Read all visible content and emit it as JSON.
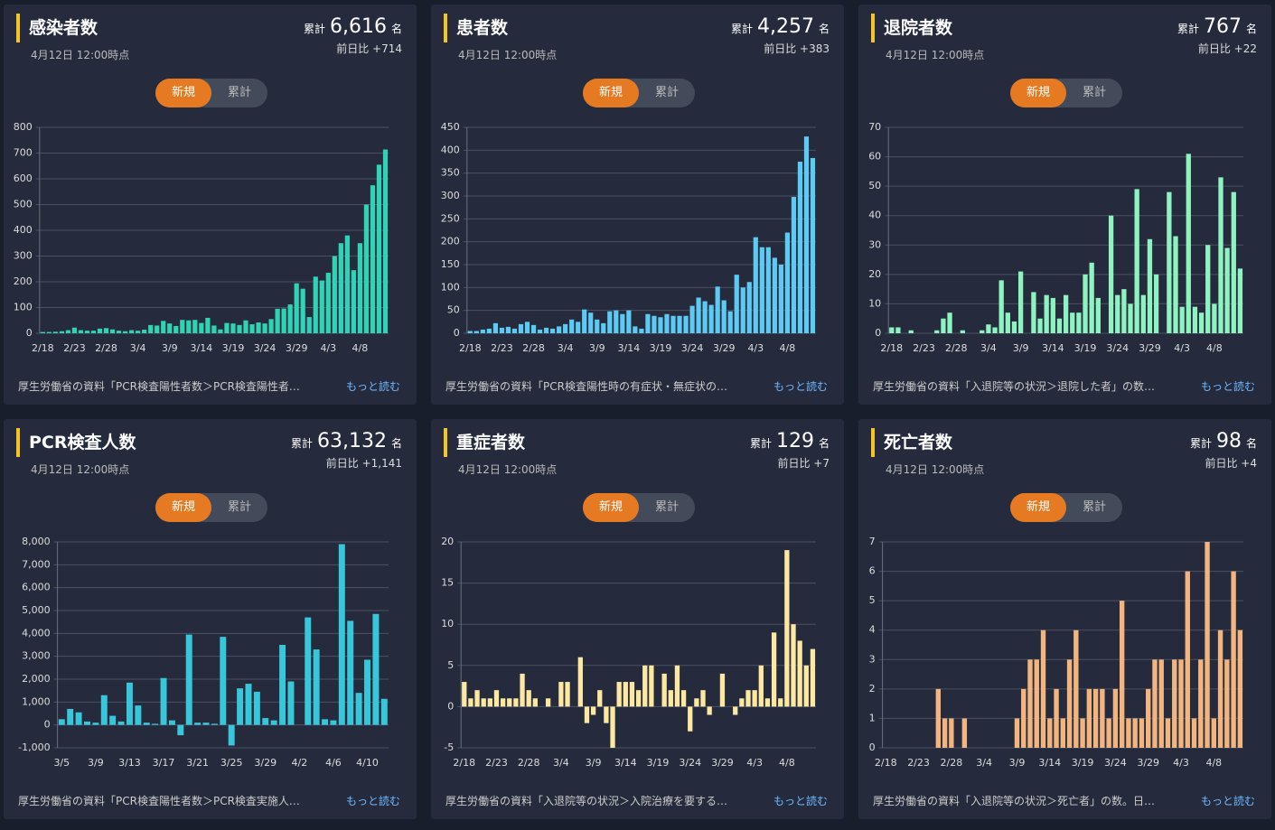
{
  "chart_data": [
    {
      "type": "bar",
      "title": "感染者数",
      "subtitle": "4月12日 12:00時点",
      "total_prefix": "累計",
      "total": "6,616",
      "unit": "名",
      "change": "前日比 +714",
      "toggle": [
        "新規",
        "累計"
      ],
      "source": "厚生労働省の資料「PCR検査陽性者数＞PCR検査陽性者…",
      "more": "もっと読む",
      "color": "#2fd3b6",
      "categories": [
        "2/18",
        null,
        null,
        null,
        null,
        "2/23",
        null,
        null,
        null,
        null,
        "2/28",
        null,
        null,
        null,
        null,
        "3/4",
        null,
        null,
        null,
        null,
        "3/9",
        null,
        null,
        null,
        null,
        "3/14",
        null,
        null,
        null,
        null,
        "3/19",
        null,
        null,
        null,
        null,
        "3/24",
        null,
        null,
        null,
        null,
        "3/29",
        null,
        null,
        null,
        null,
        "4/3",
        null,
        null,
        null,
        null,
        "4/8",
        null,
        null,
        null,
        null
      ],
      "values": [
        5,
        5,
        6,
        8,
        12,
        22,
        12,
        10,
        10,
        18,
        20,
        15,
        10,
        8,
        12,
        10,
        14,
        32,
        30,
        48,
        38,
        28,
        52,
        50,
        52,
        40,
        60,
        30,
        15,
        40,
        38,
        32,
        50,
        35,
        42,
        38,
        55,
        95,
        96,
        112,
        194,
        173,
        63,
        220,
        205,
        235,
        300,
        350,
        380,
        245,
        350,
        500,
        575,
        655,
        714
      ],
      "ylim": [
        0,
        800
      ],
      "yticks": [
        0,
        100,
        200,
        300,
        400,
        500,
        600,
        700,
        800
      ]
    },
    {
      "type": "bar",
      "title": "患者数",
      "subtitle": "4月12日 12:00時点",
      "total_prefix": "累計",
      "total": "4,257",
      "unit": "名",
      "change": "前日比 +383",
      "toggle": [
        "新規",
        "累計"
      ],
      "source": "厚生労働省の資料「PCR検査陽性時の有症状・無症状の…",
      "more": "もっと読む",
      "color": "#5ccaf2",
      "categories": [
        "2/18",
        null,
        null,
        null,
        null,
        "2/23",
        null,
        null,
        null,
        null,
        "2/28",
        null,
        null,
        null,
        null,
        "3/4",
        null,
        null,
        null,
        null,
        "3/9",
        null,
        null,
        null,
        null,
        "3/14",
        null,
        null,
        null,
        null,
        "3/19",
        null,
        null,
        null,
        null,
        "3/24",
        null,
        null,
        null,
        null,
        "3/29",
        null,
        null,
        null,
        null,
        "4/3",
        null,
        null,
        null,
        null,
        "4/8",
        null,
        null,
        null,
        null
      ],
      "values": [
        5,
        5,
        8,
        10,
        22,
        12,
        14,
        10,
        20,
        25,
        18,
        8,
        12,
        10,
        15,
        20,
        30,
        25,
        52,
        45,
        30,
        22,
        48,
        50,
        42,
        50,
        15,
        10,
        42,
        38,
        35,
        42,
        38,
        38,
        38,
        60,
        78,
        70,
        62,
        102,
        72,
        48,
        128,
        100,
        112,
        210,
        188,
        188,
        165,
        150,
        220,
        298,
        375,
        430,
        383
      ],
      "ylim": [
        0,
        450
      ],
      "yticks": [
        0,
        50,
        100,
        150,
        200,
        250,
        300,
        350,
        400,
        450
      ]
    },
    {
      "type": "bar",
      "title": "退院者数",
      "subtitle": "4月12日 12:00時点",
      "total_prefix": "累計",
      "total": "767",
      "unit": "名",
      "change": "前日比 +22",
      "toggle": [
        "新規",
        "累計"
      ],
      "source": "厚生労働省の資料「入退院等の状況＞退院した者」の数…",
      "more": "もっと読む",
      "color": "#8ff3c1",
      "categories": [
        "2/18",
        null,
        null,
        null,
        null,
        "2/23",
        null,
        null,
        null,
        null,
        "2/28",
        null,
        null,
        null,
        null,
        "3/4",
        null,
        null,
        null,
        null,
        "3/9",
        null,
        null,
        null,
        null,
        "3/14",
        null,
        null,
        null,
        null,
        "3/19",
        null,
        null,
        null,
        null,
        "3/24",
        null,
        null,
        null,
        null,
        "3/29",
        null,
        null,
        null,
        null,
        "4/3",
        null,
        null,
        null,
        null,
        "4/8",
        null,
        null,
        null,
        null
      ],
      "values": [
        2,
        2,
        0,
        1,
        0,
        0,
        0,
        1,
        5,
        7,
        0,
        1,
        0,
        0,
        1,
        3,
        2,
        18,
        7,
        4,
        21,
        0,
        14,
        5,
        13,
        12,
        5,
        13,
        7,
        7,
        20,
        24,
        12,
        0,
        40,
        13,
        15,
        10,
        49,
        13,
        32,
        20,
        0,
        48,
        33,
        9,
        61,
        9,
        7,
        30,
        10,
        53,
        29,
        48,
        22
      ],
      "ylim": [
        0,
        70
      ],
      "yticks": [
        0,
        10,
        20,
        30,
        40,
        50,
        60,
        70
      ]
    },
    {
      "type": "bar",
      "title": "PCR検査人数",
      "subtitle": "4月12日 12:00時点",
      "total_prefix": "累計",
      "total": "63,132",
      "unit": "名",
      "change": "前日比 +1,141",
      "toggle": [
        "新規",
        "累計"
      ],
      "source": "厚生労働省の資料「PCR検査陽性者数＞PCR検査実施人…",
      "more": "もっと読む",
      "color": "#38c7da",
      "categories": [
        "3/5",
        null,
        null,
        null,
        "3/9",
        null,
        null,
        null,
        "3/13",
        null,
        null,
        null,
        "3/17",
        null,
        null,
        null,
        "3/21",
        null,
        null,
        null,
        "3/25",
        null,
        null,
        null,
        "3/29",
        null,
        null,
        null,
        "4/2",
        null,
        null,
        null,
        "4/6",
        null,
        null,
        null,
        "4/10",
        null,
        null
      ],
      "values": [
        250,
        700,
        550,
        150,
        100,
        1300,
        400,
        150,
        1850,
        850,
        100,
        50,
        2050,
        200,
        -450,
        3950,
        100,
        100,
        50,
        3850,
        -900,
        1600,
        1800,
        1450,
        300,
        200,
        3500,
        1900,
        0,
        4700,
        3300,
        250,
        200,
        7900,
        4550,
        1400,
        2850,
        4850,
        1141
      ],
      "ylim": [
        -1000,
        8000
      ],
      "yticks": [
        {
          "value": -1000,
          "label": "-1,000"
        },
        0,
        {
          "value": 1000,
          "label": "1,000"
        },
        {
          "value": 2000,
          "label": "2,000"
        },
        {
          "value": 3000,
          "label": "3,000"
        },
        {
          "value": 4000,
          "label": "4,000"
        },
        {
          "value": 5000,
          "label": "5,000"
        },
        {
          "value": 6000,
          "label": "6,000"
        },
        {
          "value": 7000,
          "label": "7,000"
        },
        {
          "value": 8000,
          "label": "8,000"
        }
      ]
    },
    {
      "type": "bar",
      "title": "重症者数",
      "subtitle": "4月12日 12:00時点",
      "total_prefix": "累計",
      "total": "129",
      "unit": "名",
      "change": "前日比 +7",
      "toggle": [
        "新規",
        "累計"
      ],
      "source": "厚生労働省の資料「入退院等の状況＞入院治療を要する…",
      "more": "もっと読む",
      "color": "#fde8a2",
      "categories": [
        "2/18",
        null,
        null,
        null,
        null,
        "2/23",
        null,
        null,
        null,
        null,
        "2/28",
        null,
        null,
        null,
        null,
        "3/4",
        null,
        null,
        null,
        null,
        "3/9",
        null,
        null,
        null,
        null,
        "3/14",
        null,
        null,
        null,
        null,
        "3/19",
        null,
        null,
        null,
        null,
        "3/24",
        null,
        null,
        null,
        null,
        "3/29",
        null,
        null,
        null,
        null,
        "4/3",
        null,
        null,
        null,
        null,
        "4/8",
        null,
        null,
        null,
        null
      ],
      "values": [
        3,
        1,
        2,
        1,
        1,
        2,
        1,
        1,
        1,
        4,
        2,
        1,
        0,
        1,
        0,
        3,
        3,
        0,
        6,
        -2,
        -1,
        2,
        -2,
        -5,
        3,
        3,
        3,
        2,
        5,
        5,
        0,
        4,
        2,
        5,
        2,
        -3,
        1,
        2,
        -1,
        0,
        4,
        0,
        -1,
        1,
        2,
        2,
        5,
        1,
        9,
        1,
        19,
        10,
        8,
        5,
        7
      ],
      "ylim": [
        -5,
        20
      ],
      "yticks": [
        -5,
        0,
        5,
        10,
        15,
        20
      ]
    },
    {
      "type": "bar",
      "title": "死亡者数",
      "subtitle": "4月12日 12:00時点",
      "total_prefix": "累計",
      "total": "98",
      "unit": "名",
      "change": "前日比 +4",
      "toggle": [
        "新規",
        "累計"
      ],
      "source": "厚生労働省の資料「入退院等の状況＞死亡者」の数。日…",
      "more": "もっと読む",
      "color": "#f3b57f",
      "categories": [
        "2/18",
        null,
        null,
        null,
        null,
        "2/23",
        null,
        null,
        null,
        null,
        "2/28",
        null,
        null,
        null,
        null,
        "3/4",
        null,
        null,
        null,
        null,
        "3/9",
        null,
        null,
        null,
        null,
        "3/14",
        null,
        null,
        null,
        null,
        "3/19",
        null,
        null,
        null,
        null,
        "3/24",
        null,
        null,
        null,
        null,
        "3/29",
        null,
        null,
        null,
        null,
        "4/3",
        null,
        null,
        null,
        null,
        "4/8",
        null,
        null,
        null,
        null
      ],
      "values": [
        0,
        0,
        0,
        0,
        0,
        0,
        0,
        0,
        2,
        1,
        1,
        0,
        1,
        0,
        0,
        0,
        0,
        0,
        0,
        0,
        1,
        2,
        3,
        3,
        4,
        1,
        2,
        1,
        3,
        4,
        1,
        2,
        2,
        2,
        1,
        2,
        5,
        1,
        1,
        1,
        2,
        3,
        3,
        1,
        3,
        3,
        6,
        1,
        3,
        7,
        1,
        4,
        3,
        6,
        4
      ],
      "ylim": [
        0,
        7
      ],
      "yticks": [
        0,
        1,
        2,
        3,
        4,
        5,
        6,
        7
      ]
    }
  ]
}
